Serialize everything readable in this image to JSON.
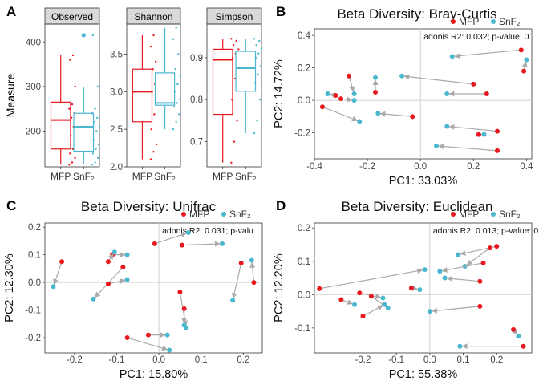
{
  "colors": {
    "mfp": "#e8191e",
    "snf2": "#4bb7cf",
    "arrow": "#aaaaaa",
    "strip": "#d9d9d9",
    "grid": "#d0d0d0"
  },
  "labels": {
    "A": "A",
    "B": "B",
    "C": "C",
    "D": "D"
  },
  "legend": {
    "mfp": "MFP",
    "snf2": "SnF₂"
  },
  "chart_data": [
    {
      "id": "A",
      "type": "box",
      "ylabel": "Measure",
      "categories": [
        "MFP",
        "SnF₂"
      ],
      "facets": [
        {
          "name": "Observed",
          "ylim": [
            120,
            440
          ],
          "yticks": [
            200,
            300,
            400
          ],
          "boxes": [
            {
              "min": 125,
              "q1": 160,
              "median": 225,
              "q3": 265,
              "max": 370
            },
            {
              "min": 125,
              "q1": 155,
              "median": 210,
              "q3": 240,
              "max": 300
            }
          ],
          "points": [
            [
              125,
              130,
              140,
              150,
              160,
              170,
              190,
              210,
              220,
              230,
              240,
              250,
              260,
              300,
              360,
              370
            ],
            [
              125,
              130,
              140,
              150,
              160,
              170,
              180,
              200,
              210,
              220,
              230,
              240,
              250,
              300,
              415
            ]
          ],
          "outliers": [
            [],
            [
              415
            ]
          ]
        },
        {
          "name": "Shannon",
          "ylim": [
            2.0,
            3.9
          ],
          "yticks": [
            2.0,
            2.5,
            3.0,
            3.5
          ],
          "boxes": [
            {
              "min": 2.1,
              "q1": 2.6,
              "median": 3.0,
              "q3": 3.3,
              "max": 3.75
            },
            {
              "min": 2.5,
              "q1": 2.82,
              "median": 2.85,
              "q3": 3.25,
              "max": 3.85
            }
          ],
          "points": [
            [
              2.1,
              2.2,
              2.3,
              2.5,
              2.7,
              2.9,
              3.0,
              3.1,
              3.2,
              3.3,
              3.4,
              3.6,
              3.75
            ],
            [
              2.5,
              2.6,
              2.7,
              2.8,
              2.85,
              2.9,
              3.0,
              3.1,
              3.2,
              3.3,
              3.5,
              3.7,
              3.85
            ]
          ],
          "outliers": [
            [],
            []
          ]
        },
        {
          "name": "Simpson",
          "ylim": [
            0.64,
            0.98
          ],
          "yticks": [
            0.7,
            0.8,
            0.9
          ],
          "boxes": [
            {
              "min": 0.65,
              "q1": 0.765,
              "median": 0.895,
              "q3": 0.92,
              "max": 0.945
            },
            {
              "min": 0.72,
              "q1": 0.82,
              "median": 0.875,
              "q3": 0.915,
              "max": 0.945
            }
          ],
          "points": [
            [
              0.65,
              0.7,
              0.75,
              0.8,
              0.85,
              0.88,
              0.9,
              0.91,
              0.92,
              0.93,
              0.94,
              0.945
            ],
            [
              0.72,
              0.75,
              0.8,
              0.84,
              0.86,
              0.88,
              0.9,
              0.91,
              0.92,
              0.93,
              0.94,
              0.945
            ]
          ],
          "outliers": [
            [],
            []
          ]
        }
      ]
    },
    {
      "id": "B",
      "type": "scatter",
      "title": "Beta Diversity: Bray-Curtis",
      "xlabel": "PC1: 33.03%",
      "ylabel": "PC2: 14.72%",
      "annotation": "adonis R2: 0.032; p-value: 0.",
      "xlim": [
        -0.4,
        0.42
      ],
      "ylim": [
        -0.36,
        0.44
      ],
      "xticks": [
        -0.4,
        -0.2,
        0.0,
        0.2,
        0.4
      ],
      "xtick_labels": [
        "-0.4",
        "-0.2",
        "0.0",
        "0.2",
        "0.4"
      ],
      "yticks": [
        -0.2,
        0.0,
        0.2,
        0.4
      ],
      "ytick_labels": [
        "-0.2",
        "0.0",
        "0.2",
        "0.4"
      ],
      "pairs": [
        {
          "mfp": [
            0.38,
            0.31
          ],
          "snf2": [
            0.12,
            0.27
          ]
        },
        {
          "mfp": [
            0.39,
            0.18
          ],
          "snf2": [
            0.4,
            0.25
          ]
        },
        {
          "mfp": [
            0.2,
            0.1
          ],
          "snf2": [
            -0.07,
            0.15
          ]
        },
        {
          "mfp": [
            -0.27,
            0.15
          ],
          "snf2": [
            -0.25,
            0.04
          ]
        },
        {
          "mfp": [
            -0.17,
            0.05
          ],
          "snf2": [
            -0.17,
            0.14
          ]
        },
        {
          "mfp": [
            -0.32,
            0.03
          ],
          "snf2": [
            -0.35,
            0.04
          ]
        },
        {
          "mfp": [
            -0.3,
            0.01
          ],
          "snf2": [
            -0.25,
            0.0
          ]
        },
        {
          "mfp": [
            -0.37,
            -0.04
          ],
          "snf2": [
            -0.23,
            -0.13
          ]
        },
        {
          "mfp": [
            -0.03,
            -0.1
          ],
          "snf2": [
            -0.16,
            -0.08
          ]
        },
        {
          "mfp": [
            0.25,
            0.04
          ],
          "snf2": [
            0.1,
            0.04
          ]
        },
        {
          "mfp": [
            0.29,
            -0.19
          ],
          "snf2": [
            0.1,
            -0.16
          ]
        },
        {
          "mfp": [
            0.29,
            -0.31
          ],
          "snf2": [
            0.06,
            -0.28
          ]
        },
        {
          "mfp": [
            0.22,
            -0.21
          ],
          "snf2": [
            0.24,
            -0.21
          ]
        }
      ]
    },
    {
      "id": "C",
      "type": "scatter",
      "title": "Beta Diversity: Unifrac",
      "xlabel": "PC1: 15.80%",
      "ylabel": "PC2: 12.30%",
      "annotation": "adonis R2: 0.031; p-valu",
      "xlim": [
        -0.27,
        0.245
      ],
      "ylim": [
        -0.255,
        0.215
      ],
      "xticks": [
        -0.2,
        -0.1,
        0.0,
        0.1,
        0.2
      ],
      "xtick_labels": [
        "-0.2",
        "-0.1",
        "0.0",
        "0.1",
        "0.2"
      ],
      "yticks": [
        -0.2,
        -0.1,
        0.0,
        0.1,
        0.2
      ],
      "ytick_labels": [
        "-0.2",
        "-0.1",
        "0.0",
        "0.1",
        "0.2"
      ],
      "pairs": [
        {
          "mfp": [
            -0.23,
            0.075
          ],
          "snf2": [
            -0.25,
            -0.015
          ]
        },
        {
          "mfp": [
            -0.085,
            0.055
          ],
          "snf2": [
            -0.155,
            -0.06
          ]
        },
        {
          "mfp": [
            -0.12,
            -0.005
          ],
          "snf2": [
            -0.075,
            0.01
          ]
        },
        {
          "mfp": [
            -0.11,
            0.1
          ],
          "snf2": [
            -0.075,
            0.1
          ]
        },
        {
          "mfp": [
            -0.12,
            0.075
          ],
          "snf2": [
            -0.105,
            0.11
          ]
        },
        {
          "mfp": [
            -0.01,
            0.14
          ],
          "snf2": [
            0.07,
            0.18
          ]
        },
        {
          "mfp": [
            0.055,
            0.135
          ],
          "snf2": [
            0.15,
            0.14
          ]
        },
        {
          "mfp": [
            0.05,
            -0.035
          ],
          "snf2": [
            0.065,
            -0.165
          ]
        },
        {
          "mfp": [
            0.06,
            -0.095
          ],
          "snf2": [
            0.06,
            -0.155
          ]
        },
        {
          "mfp": [
            -0.025,
            -0.19
          ],
          "snf2": [
            0.02,
            -0.19
          ]
        },
        {
          "mfp": [
            -0.075,
            -0.2
          ],
          "snf2": [
            0.025,
            -0.245
          ]
        },
        {
          "mfp": [
            0.195,
            0.07
          ],
          "snf2": [
            0.175,
            -0.065
          ]
        },
        {
          "mfp": [
            0.225,
            0.0
          ],
          "snf2": [
            0.22,
            0.08
          ]
        }
      ]
    },
    {
      "id": "D",
      "type": "scatter",
      "title": "Beta Diversity: Euclidean",
      "xlabel": "PC1: 55.38%",
      "ylabel": "PC2: 12.20%",
      "annotation": "adonis R2: 0.013; p-value: 0.",
      "xlim": [
        -0.345,
        0.305
      ],
      "ylim": [
        -0.175,
        0.215
      ],
      "xticks": [
        -0.2,
        -0.1,
        0.0,
        0.1,
        0.2
      ],
      "xtick_labels": [
        "-0.2",
        "-0.1",
        "0.0",
        "0.1",
        "0.2"
      ],
      "yticks": [
        -0.1,
        0.0,
        0.1,
        0.2
      ],
      "ytick_labels": [
        "-0.1",
        "0.0",
        "0.1",
        "0.2"
      ],
      "pairs": [
        {
          "mfp": [
            -0.33,
            0.018
          ],
          "snf2": [
            -0.015,
            0.075
          ]
        },
        {
          "mfp": [
            -0.21,
            0.005
          ],
          "snf2": [
            -0.14,
            -0.01
          ]
        },
        {
          "mfp": [
            -0.175,
            -0.005
          ],
          "snf2": [
            -0.125,
            -0.04
          ]
        },
        {
          "mfp": [
            -0.2,
            -0.065
          ],
          "snf2": [
            -0.135,
            -0.03
          ]
        },
        {
          "mfp": [
            -0.265,
            -0.015
          ],
          "snf2": [
            -0.225,
            -0.03
          ]
        },
        {
          "mfp": [
            -0.055,
            0.02
          ],
          "snf2": [
            -0.03,
            0.015
          ]
        },
        {
          "mfp": [
            0.2,
            0.145
          ],
          "snf2": [
            0.085,
            0.12
          ]
        },
        {
          "mfp": [
            0.18,
            0.14
          ],
          "snf2": [
            0.105,
            0.085
          ]
        },
        {
          "mfp": [
            0.16,
            0.095
          ],
          "snf2": [
            0.03,
            0.07
          ]
        },
        {
          "mfp": [
            0.15,
            0.04
          ],
          "snf2": [
            0.045,
            0.05
          ]
        },
        {
          "mfp": [
            0.15,
            -0.035
          ],
          "snf2": [
            0.0,
            -0.05
          ]
        },
        {
          "mfp": [
            0.25,
            -0.105
          ],
          "snf2": [
            0.265,
            -0.125
          ]
        },
        {
          "mfp": [
            0.28,
            -0.155
          ],
          "snf2": [
            0.09,
            -0.155
          ]
        }
      ]
    }
  ]
}
